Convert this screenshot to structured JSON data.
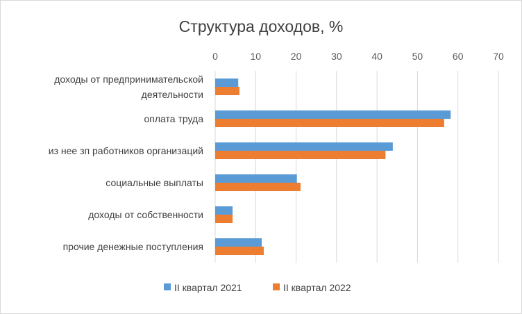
{
  "chart_data": {
    "type": "bar",
    "orientation": "horizontal",
    "title": "Структура доходов, %",
    "xlabel": "",
    "ylabel": "",
    "xlim": [
      0,
      70
    ],
    "x_ticks": [
      "0",
      "10",
      "20",
      "30",
      "40",
      "50",
      "60",
      "70"
    ],
    "x_axis_position": "top",
    "grid": true,
    "legend_position": "bottom",
    "categories": [
      [
        "доходы от предпринимательской",
        "деятельности"
      ],
      [
        "оплата труда"
      ],
      [
        "из нее зп работников организаций"
      ],
      [
        "социальные выплаты"
      ],
      [
        "доходы от собственности"
      ],
      [
        "прочие денежные поступления"
      ]
    ],
    "series": [
      {
        "name": "II квартал 2021",
        "color": "#5b9bd5",
        "values": [
          5.7,
          58.2,
          43.9,
          20.2,
          4.3,
          11.5
        ]
      },
      {
        "name": "II квартал 2022",
        "color": "#ed7d31",
        "values": [
          6.0,
          56.6,
          42.1,
          21.1,
          4.3,
          12.0
        ]
      }
    ]
  }
}
